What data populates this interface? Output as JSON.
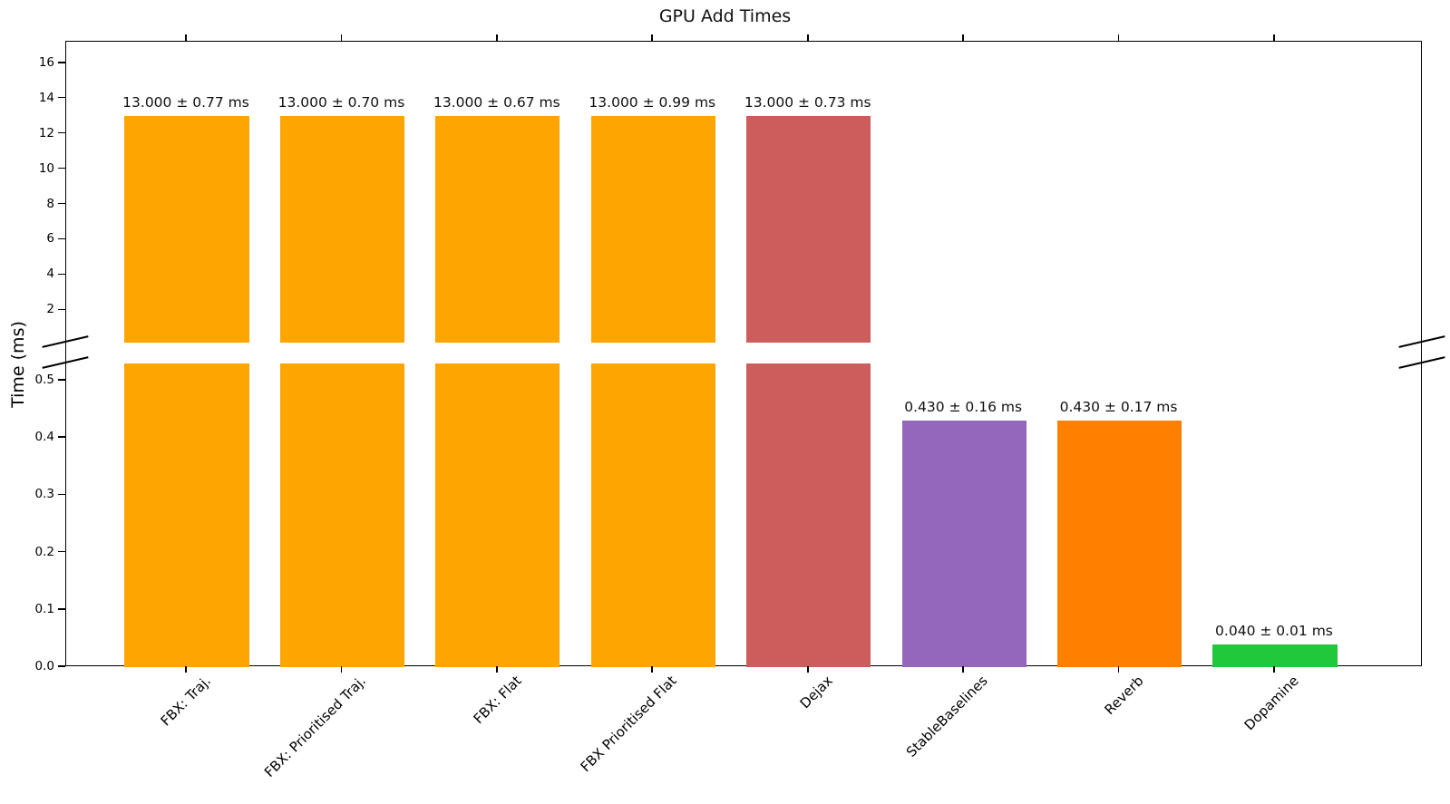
{
  "chart_data": {
    "type": "bar",
    "title": "GPU Add Times",
    "xlabel": "",
    "ylabel": "Time (ms)",
    "categories": [
      "FBX: Traj.",
      "FBX: Prioritised Traj.",
      "FBX: Flat",
      "FBX Prioritised Flat",
      "Dejax",
      "StableBaselines",
      "Reverb",
      "Dopamine"
    ],
    "values": [
      13.0,
      13.0,
      13.0,
      13.0,
      13.0,
      0.43,
      0.43,
      0.04
    ],
    "errors": [
      0.77,
      0.7,
      0.67,
      0.99,
      0.73,
      0.16,
      0.17,
      0.01
    ],
    "bar_labels": [
      "13.000 ± 0.77 ms",
      "13.000 ± 0.70 ms",
      "13.000 ± 0.67 ms",
      "13.000 ± 0.99 ms",
      "13.000 ± 0.73 ms",
      "0.430 ± 0.16 ms",
      "0.430 ± 0.17 ms",
      "0.040 ± 0.01 ms"
    ],
    "colors": [
      "#FFA500",
      "#FFA500",
      "#FFA500",
      "#FFA500",
      "#CD5C5C",
      "#9467BD",
      "#FF8000",
      "#22C83C"
    ],
    "legend": null,
    "grid": false,
    "broken_axis": true,
    "bar_width_fraction": 0.8,
    "panels": [
      {
        "position": "top",
        "ylim": [
          0.17,
          17.22
        ],
        "ticks": [
          2,
          4,
          6,
          8,
          10,
          12,
          14,
          16
        ],
        "tick_labels": [
          "2",
          "4",
          "6",
          "8",
          "10",
          "12",
          "14",
          "16"
        ]
      },
      {
        "position": "bottom",
        "ylim": [
          0,
          0.53
        ],
        "ticks": [
          0.0,
          0.1,
          0.2,
          0.3,
          0.4,
          0.5
        ],
        "tick_labels": [
          "0.0",
          "0.1",
          "0.2",
          "0.3",
          "0.4",
          "0.5"
        ]
      }
    ]
  }
}
